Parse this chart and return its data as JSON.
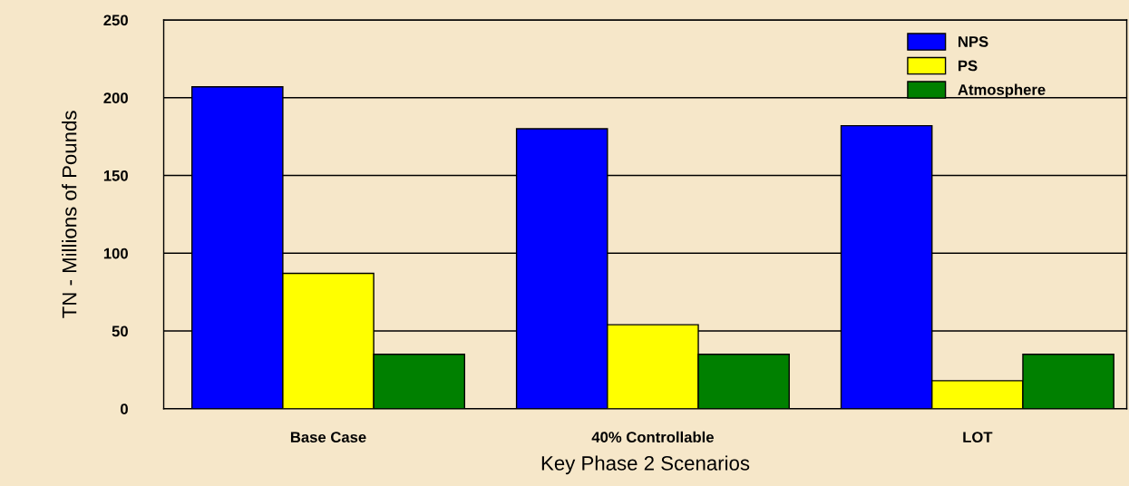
{
  "chart_data": {
    "type": "bar",
    "xlabel": "Key Phase 2 Scenarios",
    "ylabel": "TN - Millions of Pounds",
    "categories": [
      "Base Case",
      "40% Controllable",
      "LOT"
    ],
    "series": [
      {
        "name": "NPS",
        "color": "#0000ff",
        "values": [
          207,
          180,
          182
        ]
      },
      {
        "name": "PS",
        "color": "#ffff00",
        "values": [
          87,
          54,
          18
        ]
      },
      {
        "name": "Atmosphere",
        "color": "#008000",
        "values": [
          35,
          35,
          35
        ]
      }
    ],
    "ylim": [
      0,
      250
    ],
    "yticks": [
      0,
      50,
      100,
      150,
      200,
      250
    ],
    "grid": "y",
    "legend": "top right"
  }
}
